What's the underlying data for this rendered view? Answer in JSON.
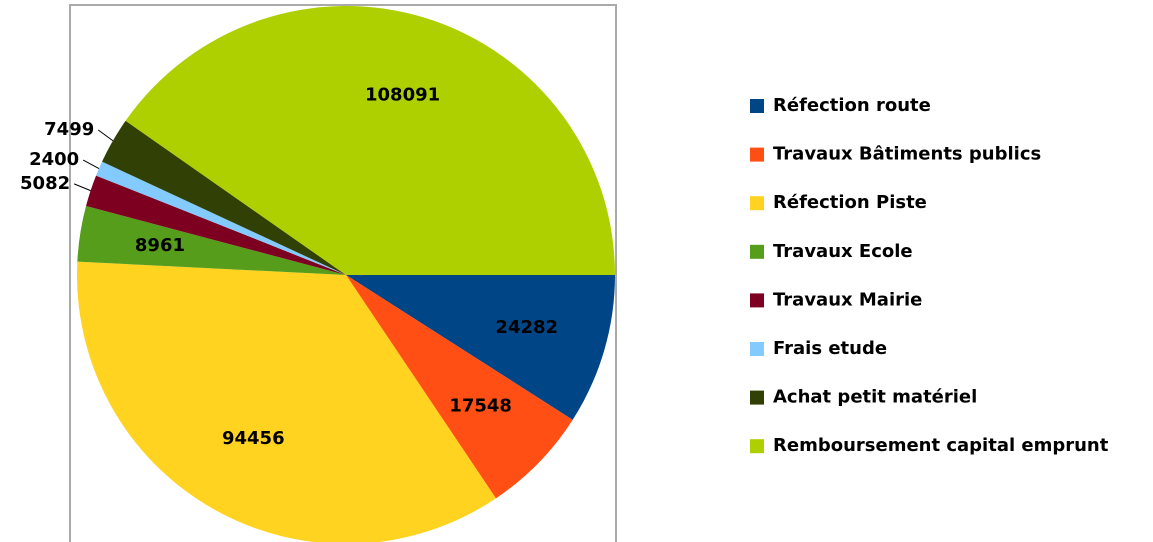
{
  "chart_data": {
    "type": "pie",
    "categories": [
      "Réfection route",
      "Travaux Bâtiments publics",
      "Réfection Piste",
      "Travaux Ecole",
      "Travaux Mairie",
      "Frais etude",
      "Achat petit matériel",
      "Remboursement capital emprunt"
    ],
    "values": [
      24282,
      17548,
      94456,
      8961,
      5082,
      2400,
      7499,
      108091
    ],
    "colors": [
      "#004586",
      "#ff4f14",
      "#ffd320",
      "#579d1c",
      "#7e0021",
      "#83caff",
      "#314004",
      "#aecf00"
    ],
    "legend": "right"
  }
}
